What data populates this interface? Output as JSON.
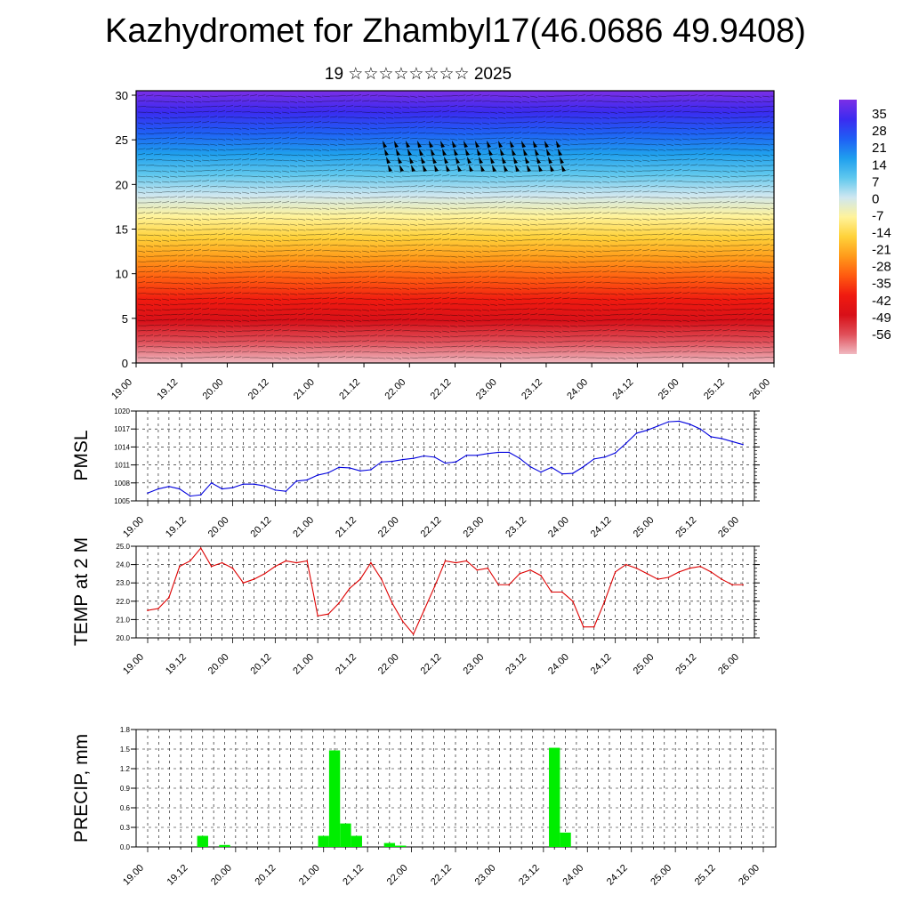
{
  "header": {
    "title": "Kazhydromet for Zhambyl17(46.0686 49.9408)",
    "subtitle": "19 ☆☆☆☆☆☆☆☆ 2025"
  },
  "colors": {
    "pmsl_line": "#0000dd",
    "temp_line": "#dd0000",
    "precip_bar": "#00ee00",
    "colormap": [
      "#7b2fe6",
      "#3b2bf0",
      "#1f5ff5",
      "#1f9fee",
      "#5fc8ee",
      "#cfe7f0",
      "#fff39a",
      "#ffd23a",
      "#ff9a1a",
      "#ff5a10",
      "#f01a10",
      "#d81018",
      "#e0505a",
      "#f0b8c0"
    ]
  },
  "chart_data": [
    {
      "type": "heatmap",
      "name": "cross-section",
      "x_ticks": [
        "19.00",
        "19.12",
        "20.00",
        "20.12",
        "21.00",
        "21.12",
        "22.00",
        "22.12",
        "23.00",
        "23.12",
        "24.00",
        "24.12",
        "25.00",
        "25.12",
        "26.00"
      ],
      "y_ticks": [
        "0",
        "5",
        "10",
        "15",
        "20",
        "25",
        "30"
      ],
      "xlim": [
        0,
        14
      ],
      "ylim": [
        0,
        30.5
      ],
      "colorbar_labels": [
        "35",
        "28",
        "21",
        "14",
        "7",
        "0",
        "-7",
        "-14",
        "-21",
        "-28",
        "-35",
        "-42",
        "-49",
        "-56"
      ],
      "colorbar_range": [
        -63,
        42
      ],
      "overlay": "wind barbs"
    },
    {
      "type": "line",
      "name": "pmsl",
      "ylabel": "PMSL",
      "x_ticks": [
        "19.00",
        "19.12",
        "20.00",
        "20.12",
        "21.00",
        "21.12",
        "22.00",
        "22.12",
        "23.00",
        "23.12",
        "24.00",
        "24.12",
        "25.00",
        "25.12",
        "26.00"
      ],
      "y_ticks": [
        "1005",
        "1008",
        "1011",
        "1014",
        "1017",
        "1020"
      ],
      "ylim": [
        1005,
        1020
      ],
      "xlim": [
        0,
        14
      ],
      "x": [
        0,
        0.25,
        0.5,
        0.75,
        1,
        1.25,
        1.5,
        1.75,
        2,
        2.25,
        2.5,
        2.75,
        3,
        3.25,
        3.5,
        3.75,
        4,
        4.25,
        4.5,
        4.75,
        5,
        5.25,
        5.5,
        5.75,
        6,
        6.25,
        6.5,
        6.75,
        7,
        7.25,
        7.5,
        7.75,
        8,
        8.25,
        8.5,
        8.75,
        9,
        9.25,
        9.5,
        9.75,
        10,
        10.25,
        10.5,
        10.75,
        11,
        11.25,
        11.5,
        11.75,
        12,
        12.25,
        12.5,
        12.75,
        13,
        13.25,
        13.5,
        13.75,
        14
      ],
      "values": [
        1006.3,
        1007.0,
        1007.4,
        1007.0,
        1005.8,
        1006.0,
        1008.0,
        1007.0,
        1007.2,
        1007.8,
        1007.8,
        1007.5,
        1006.8,
        1006.6,
        1008.3,
        1008.5,
        1009.3,
        1009.7,
        1010.6,
        1010.5,
        1010.0,
        1010.2,
        1011.5,
        1011.6,
        1011.9,
        1012.1,
        1012.5,
        1012.3,
        1011.3,
        1011.5,
        1012.6,
        1012.6,
        1012.9,
        1013.1,
        1013.1,
        1012.1,
        1010.7,
        1009.8,
        1010.6,
        1009.5,
        1009.6,
        1010.7,
        1012.0,
        1012.3,
        1013.0,
        1014.6,
        1016.3,
        1016.8,
        1017.5,
        1018.2,
        1018.3,
        1017.8,
        1017.0,
        1015.7,
        1015.4,
        1014.9,
        1014.4
      ]
    },
    {
      "type": "line",
      "name": "temp",
      "ylabel": "TEMP at 2 M",
      "x_ticks": [
        "19.00",
        "19.12",
        "20.00",
        "20.12",
        "21.00",
        "21.12",
        "22.00",
        "22.12",
        "23.00",
        "23.12",
        "24.00",
        "24.12",
        "25.00",
        "25.12",
        "26.00"
      ],
      "y_ticks": [
        "20.0",
        "21.0",
        "22.0",
        "23.0",
        "24.0",
        "25.0"
      ],
      "ylim": [
        20,
        25
      ],
      "xlim": [
        0,
        14
      ],
      "x": [
        0,
        0.25,
        0.5,
        0.75,
        1,
        1.25,
        1.5,
        1.75,
        2,
        2.25,
        2.5,
        2.75,
        3,
        3.25,
        3.5,
        3.75,
        4,
        4.25,
        4.5,
        4.75,
        5,
        5.25,
        5.5,
        5.75,
        6,
        6.25,
        6.5,
        6.75,
        7,
        7.25,
        7.5,
        7.75,
        8,
        8.25,
        8.5,
        8.75,
        9,
        9.25,
        9.5,
        9.75,
        10,
        10.25,
        10.5,
        10.75,
        11,
        11.25,
        11.5,
        11.75,
        12,
        12.25,
        12.5,
        12.75,
        13,
        13.25,
        13.5,
        13.75,
        14
      ],
      "values": [
        21.5,
        21.6,
        22.2,
        23.9,
        24.2,
        24.9,
        23.9,
        24.1,
        23.8,
        23.0,
        23.2,
        23.5,
        23.9,
        24.2,
        24.1,
        24.2,
        21.2,
        21.3,
        21.9,
        22.7,
        23.2,
        24.1,
        23.2,
        21.9,
        20.9,
        20.2,
        21.5,
        22.8,
        24.2,
        24.1,
        24.2,
        23.7,
        23.8,
        22.9,
        22.9,
        23.5,
        23.7,
        23.4,
        22.5,
        22.5,
        22.0,
        20.6,
        20.6,
        22.0,
        23.6,
        24.0,
        23.8,
        23.5,
        23.2,
        23.3,
        23.6,
        23.8,
        23.9,
        23.6,
        23.2,
        22.9,
        22.9
      ]
    },
    {
      "type": "bar",
      "name": "precip",
      "ylabel": "PRECIP, mm",
      "x_ticks": [
        "19.00",
        "19.12",
        "20.00",
        "20.12",
        "21.00",
        "21.12",
        "22.00",
        "22.12",
        "23.00",
        "23.12",
        "24.00",
        "24.12",
        "25.00",
        "25.12",
        "26.00"
      ],
      "y_ticks": [
        "0.0",
        "0.3",
        "0.6",
        "0.9",
        "1.2",
        "1.5",
        "1.8"
      ],
      "ylim": [
        0,
        1.8
      ],
      "xlim": [
        0,
        14
      ],
      "bar_width": 0.25,
      "x": [
        1.25,
        1.75,
        4.0,
        4.25,
        4.5,
        4.75,
        5.5,
        5.75,
        9.25,
        9.5
      ],
      "values": [
        0.17,
        0.03,
        0.17,
        1.48,
        0.36,
        0.17,
        0.06,
        0.02,
        1.52,
        0.22
      ]
    }
  ]
}
